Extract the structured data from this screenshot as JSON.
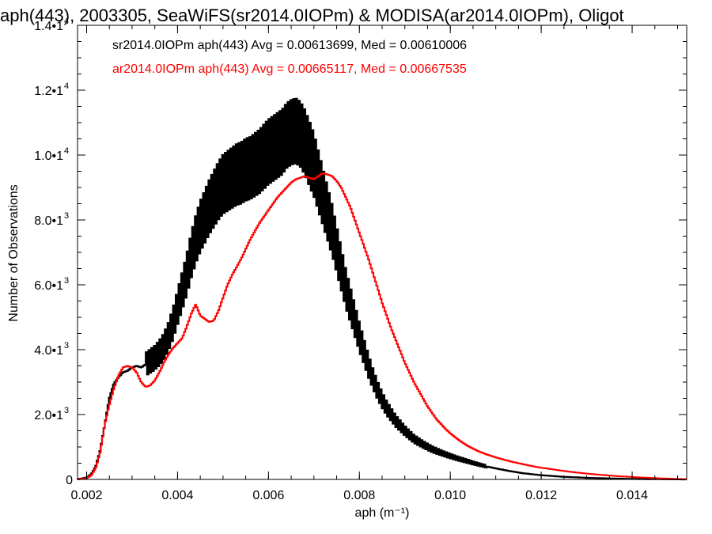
{
  "chart_data": {
    "type": "line",
    "title": "aph(443), 2003305, SeaWiFS(sr2014.0IOPm) & MODISA(ar2014.0IOPm), Oligot",
    "xlabel": "aph (m⁻¹)",
    "ylabel": "Number of Observations",
    "xlim": [
      0.0018,
      0.0152
    ],
    "ylim": [
      0,
      14000
    ],
    "x_ticks": [
      "0.002",
      "0.004",
      "0.006",
      "0.008",
      "0.010",
      "0.012",
      "0.014"
    ],
    "y_ticks": [
      {
        "mant": "0",
        "exp": ""
      },
      {
        "mant": "2.0•1",
        "exp": "3"
      },
      {
        "mant": "4.0•1",
        "exp": "3"
      },
      {
        "mant": "6.0•1",
        "exp": "3"
      },
      {
        "mant": "8.0•1",
        "exp": "3"
      },
      {
        "mant": "1.0•1",
        "exp": "4"
      },
      {
        "mant": "1.2•1",
        "exp": "4"
      },
      {
        "mant": "1.4•1",
        "exp": "4"
      }
    ],
    "grid": false,
    "legend_position": "top-left",
    "series": [
      {
        "name": "sr2014.0IOPm aph(443) Avg = 0.00613699, Med = 0.00610006",
        "color": "#000000",
        "zigzag": true,
        "points": [
          [
            0.0018,
            0
          ],
          [
            0.002,
            60
          ],
          [
            0.0021,
            150
          ],
          [
            0.0022,
            400
          ],
          [
            0.0023,
            900
          ],
          [
            0.0024,
            1700
          ],
          [
            0.0025,
            2500
          ],
          [
            0.0026,
            2950
          ],
          [
            0.0027,
            3150
          ],
          [
            0.0028,
            3300
          ],
          [
            0.0029,
            3350
          ],
          [
            0.003,
            3450
          ],
          [
            0.0031,
            3500
          ],
          [
            0.0032,
            3450
          ],
          [
            0.0033,
            3550
          ],
          [
            0.0034,
            3650
          ],
          [
            0.0035,
            3750
          ],
          [
            0.0036,
            3900
          ],
          [
            0.0037,
            4100
          ],
          [
            0.0038,
            4400
          ],
          [
            0.0039,
            4800
          ],
          [
            0.004,
            5300
          ],
          [
            0.0041,
            5800
          ],
          [
            0.0042,
            6300
          ],
          [
            0.0043,
            6900
          ],
          [
            0.0044,
            7400
          ],
          [
            0.0045,
            7800
          ],
          [
            0.0046,
            8100
          ],
          [
            0.0047,
            8400
          ],
          [
            0.0048,
            8650
          ],
          [
            0.0049,
            8900
          ],
          [
            0.005,
            9100
          ],
          [
            0.0051,
            9200
          ],
          [
            0.0052,
            9300
          ],
          [
            0.0053,
            9400
          ],
          [
            0.0054,
            9450
          ],
          [
            0.0055,
            9550
          ],
          [
            0.0056,
            9600
          ],
          [
            0.0057,
            9700
          ],
          [
            0.0058,
            9800
          ],
          [
            0.0059,
            9950
          ],
          [
            0.006,
            10100
          ],
          [
            0.0061,
            10200
          ],
          [
            0.0062,
            10300
          ],
          [
            0.0063,
            10400
          ],
          [
            0.0064,
            10600
          ],
          [
            0.0065,
            10700
          ],
          [
            0.0066,
            10750
          ],
          [
            0.0067,
            10650
          ],
          [
            0.0068,
            10400
          ],
          [
            0.0069,
            10050
          ],
          [
            0.007,
            9700
          ],
          [
            0.0071,
            9200
          ],
          [
            0.0072,
            8700
          ],
          [
            0.0073,
            8200
          ],
          [
            0.0074,
            7700
          ],
          [
            0.0075,
            7100
          ],
          [
            0.0076,
            6500
          ],
          [
            0.0077,
            5900
          ],
          [
            0.0078,
            5400
          ],
          [
            0.0079,
            4900
          ],
          [
            0.008,
            4400
          ],
          [
            0.0081,
            3950
          ],
          [
            0.0082,
            3500
          ],
          [
            0.0083,
            3100
          ],
          [
            0.0084,
            2750
          ],
          [
            0.0085,
            2450
          ],
          [
            0.0086,
            2200
          ],
          [
            0.0087,
            2000
          ],
          [
            0.0088,
            1800
          ],
          [
            0.0089,
            1650
          ],
          [
            0.009,
            1500
          ],
          [
            0.0092,
            1250
          ],
          [
            0.0094,
            1080
          ],
          [
            0.0096,
            930
          ],
          [
            0.0098,
            820
          ],
          [
            0.01,
            720
          ],
          [
            0.0102,
            630
          ],
          [
            0.0104,
            550
          ],
          [
            0.0106,
            470
          ],
          [
            0.0108,
            400
          ],
          [
            0.011,
            340
          ],
          [
            0.0113,
            260
          ],
          [
            0.0116,
            190
          ],
          [
            0.012,
            130
          ],
          [
            0.0125,
            80
          ],
          [
            0.013,
            50
          ],
          [
            0.0135,
            30
          ],
          [
            0.014,
            15
          ],
          [
            0.0145,
            8
          ],
          [
            0.0152,
            0
          ]
        ]
      },
      {
        "name": "ar2014.0IOPm aph(443) Avg = 0.00665117, Med = 0.00667535",
        "color": "#ff0000",
        "zigzag": false,
        "points": [
          [
            0.0018,
            0
          ],
          [
            0.002,
            40
          ],
          [
            0.0021,
            120
          ],
          [
            0.0022,
            350
          ],
          [
            0.0023,
            850
          ],
          [
            0.0024,
            1700
          ],
          [
            0.0025,
            2300
          ],
          [
            0.0026,
            2800
          ],
          [
            0.0027,
            3200
          ],
          [
            0.0028,
            3450
          ],
          [
            0.0029,
            3500
          ],
          [
            0.003,
            3450
          ],
          [
            0.0031,
            3300
          ],
          [
            0.0032,
            3000
          ],
          [
            0.0033,
            2850
          ],
          [
            0.0034,
            2900
          ],
          [
            0.0035,
            3050
          ],
          [
            0.0036,
            3300
          ],
          [
            0.0037,
            3600
          ],
          [
            0.0038,
            3850
          ],
          [
            0.0039,
            4050
          ],
          [
            0.004,
            4200
          ],
          [
            0.0041,
            4350
          ],
          [
            0.0042,
            4700
          ],
          [
            0.0043,
            5100
          ],
          [
            0.0044,
            5400
          ],
          [
            0.0045,
            5050
          ],
          [
            0.0046,
            4950
          ],
          [
            0.0047,
            4850
          ],
          [
            0.0048,
            4900
          ],
          [
            0.0049,
            5200
          ],
          [
            0.005,
            5600
          ],
          [
            0.0051,
            6000
          ],
          [
            0.0052,
            6300
          ],
          [
            0.0053,
            6550
          ],
          [
            0.0054,
            6800
          ],
          [
            0.0055,
            7100
          ],
          [
            0.0056,
            7400
          ],
          [
            0.0057,
            7650
          ],
          [
            0.0058,
            7900
          ],
          [
            0.0059,
            8100
          ],
          [
            0.006,
            8300
          ],
          [
            0.0061,
            8500
          ],
          [
            0.0062,
            8700
          ],
          [
            0.0063,
            8850
          ],
          [
            0.0064,
            9000
          ],
          [
            0.0065,
            9150
          ],
          [
            0.0066,
            9250
          ],
          [
            0.0067,
            9300
          ],
          [
            0.0068,
            9350
          ],
          [
            0.0069,
            9300
          ],
          [
            0.007,
            9250
          ],
          [
            0.0071,
            9350
          ],
          [
            0.0072,
            9450
          ],
          [
            0.0073,
            9400
          ],
          [
            0.0074,
            9350
          ],
          [
            0.0075,
            9200
          ],
          [
            0.0076,
            9000
          ],
          [
            0.0077,
            8700
          ],
          [
            0.0078,
            8400
          ],
          [
            0.0079,
            8000
          ],
          [
            0.008,
            7600
          ],
          [
            0.0081,
            7200
          ],
          [
            0.0082,
            6800
          ],
          [
            0.0083,
            6350
          ],
          [
            0.0084,
            5900
          ],
          [
            0.0085,
            5450
          ],
          [
            0.0086,
            5050
          ],
          [
            0.0087,
            4650
          ],
          [
            0.0088,
            4300
          ],
          [
            0.0089,
            3950
          ],
          [
            0.009,
            3600
          ],
          [
            0.0091,
            3300
          ],
          [
            0.0092,
            3000
          ],
          [
            0.0093,
            2750
          ],
          [
            0.0094,
            2500
          ],
          [
            0.0095,
            2250
          ],
          [
            0.0096,
            2050
          ],
          [
            0.0097,
            1850
          ],
          [
            0.0098,
            1700
          ],
          [
            0.0099,
            1550
          ],
          [
            0.01,
            1420
          ],
          [
            0.0102,
            1200
          ],
          [
            0.0104,
            1020
          ],
          [
            0.0106,
            880
          ],
          [
            0.0108,
            770
          ],
          [
            0.011,
            680
          ],
          [
            0.0112,
            600
          ],
          [
            0.0114,
            530
          ],
          [
            0.0116,
            470
          ],
          [
            0.0118,
            410
          ],
          [
            0.012,
            360
          ],
          [
            0.0123,
            300
          ],
          [
            0.0126,
            240
          ],
          [
            0.013,
            180
          ],
          [
            0.0134,
            130
          ],
          [
            0.0138,
            90
          ],
          [
            0.0142,
            60
          ],
          [
            0.0146,
            35
          ],
          [
            0.015,
            15
          ],
          [
            0.0152,
            5
          ]
        ]
      }
    ]
  }
}
